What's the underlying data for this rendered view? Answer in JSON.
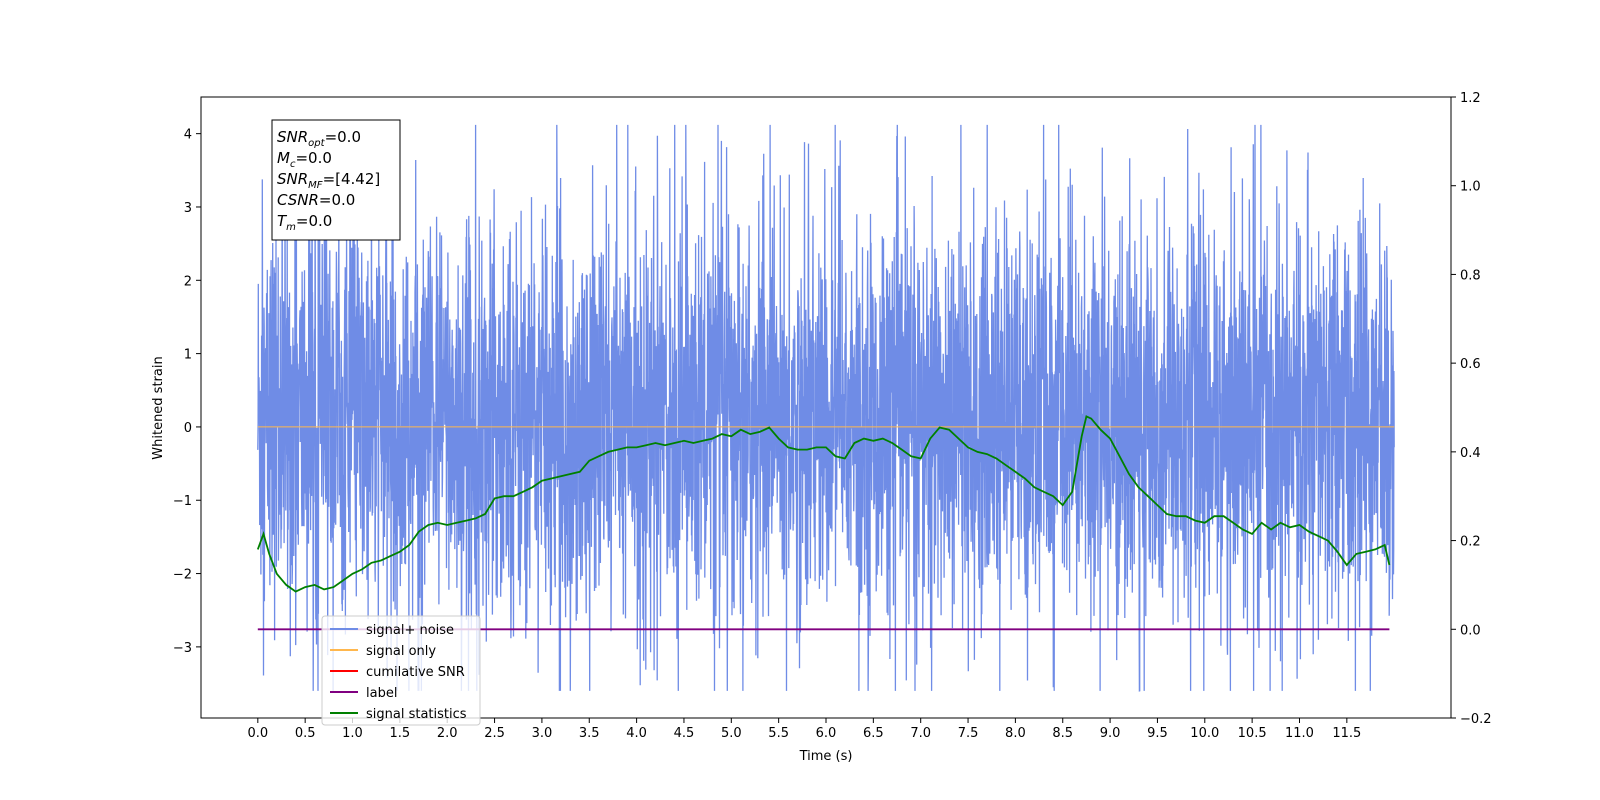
{
  "chart_data": {
    "type": "line",
    "xlabel": "Time (s)",
    "ylabel": "Whitened strain",
    "xlim": [
      -0.6,
      12.6
    ],
    "ylim": [
      -3.97,
      4.5
    ],
    "y2lim": [
      -0.2,
      1.2
    ],
    "x_ticks": [
      0.0,
      0.5,
      1.0,
      1.5,
      2.0,
      2.5,
      3.0,
      3.5,
      4.0,
      4.5,
      5.0,
      5.5,
      6.0,
      6.5,
      7.0,
      7.5,
      8.0,
      8.5,
      9.0,
      9.5,
      10.0,
      10.5,
      11.0,
      11.5
    ],
    "x_tick_labels": [
      "0.0",
      "0.5",
      "1.0",
      "1.5",
      "2.0",
      "2.5",
      "3.0",
      "3.5",
      "4.0",
      "4.5",
      "5.0",
      "5.5",
      "6.0",
      "6.5",
      "7.0",
      "7.5",
      "8.0",
      "8.5",
      "9.0",
      "9.5",
      "10.0",
      "10.5",
      "11.0",
      "11.5"
    ],
    "y_ticks": [
      -3,
      -2,
      -1,
      0,
      1,
      2,
      3,
      4
    ],
    "y_tick_labels": [
      "−3",
      "−2",
      "−1",
      "0",
      "1",
      "2",
      "3",
      "4"
    ],
    "y2_ticks": [
      -0.2,
      0.0,
      0.2,
      0.4,
      0.6,
      0.8,
      1.0,
      1.2
    ],
    "y2_tick_labels": [
      "−0.2",
      "0.0",
      "0.2",
      "0.4",
      "0.6",
      "0.8",
      "1.0",
      "1.2"
    ],
    "grid": false,
    "legend_position": "lower-left",
    "annotation": [
      {
        "base": "SNR",
        "sub": "opt",
        "value": "=0.0"
      },
      {
        "base": "M",
        "sub": "c",
        "value": "=0.0"
      },
      {
        "base": "SNR",
        "sub": "MF",
        "value": "=[4.42]"
      },
      {
        "base": "CSNR",
        "sub": "",
        "value": "=0.0"
      },
      {
        "base": "T",
        "sub": "m",
        "value": "=0.0"
      }
    ],
    "series": [
      {
        "name": "signal+ noise",
        "color": "#6f8ce6",
        "axis": "left",
        "kind": "noise",
        "x_range": [
          0.0,
          12.0
        ],
        "band": [
          -1.3,
          1.5
        ],
        "max": 4.12,
        "min": -3.6
      },
      {
        "name": "signal only",
        "color": "#ffb74d",
        "axis": "left",
        "x": [
          0.0,
          12.0
        ],
        "y": [
          0.0,
          0.0
        ]
      },
      {
        "name": "cumilative SNR",
        "color": "#ff0000",
        "axis": "right",
        "x": [],
        "y": []
      },
      {
        "name": "label",
        "color": "#800080",
        "axis": "right",
        "x": [
          0.0,
          11.95
        ],
        "y": [
          0.0,
          0.0
        ]
      },
      {
        "name": "signal statistics",
        "color": "#008000",
        "axis": "right",
        "x": [
          0.0,
          0.06,
          0.12,
          0.2,
          0.3,
          0.4,
          0.5,
          0.6,
          0.7,
          0.8,
          0.9,
          1.0,
          1.1,
          1.2,
          1.3,
          1.4,
          1.5,
          1.6,
          1.7,
          1.8,
          1.9,
          2.0,
          2.1,
          2.2,
          2.3,
          2.4,
          2.5,
          2.6,
          2.7,
          2.8,
          2.9,
          3.0,
          3.1,
          3.2,
          3.3,
          3.4,
          3.5,
          3.6,
          3.7,
          3.8,
          3.9,
          4.0,
          4.1,
          4.2,
          4.3,
          4.4,
          4.5,
          4.6,
          4.7,
          4.8,
          4.9,
          5.0,
          5.1,
          5.2,
          5.3,
          5.4,
          5.5,
          5.6,
          5.7,
          5.8,
          5.9,
          6.0,
          6.1,
          6.2,
          6.3,
          6.4,
          6.5,
          6.6,
          6.7,
          6.8,
          6.9,
          7.0,
          7.1,
          7.2,
          7.3,
          7.4,
          7.5,
          7.6,
          7.7,
          7.8,
          7.9,
          8.0,
          8.1,
          8.2,
          8.3,
          8.4,
          8.5,
          8.6,
          8.7,
          8.75,
          8.8,
          8.9,
          9.0,
          9.1,
          9.2,
          9.3,
          9.4,
          9.5,
          9.6,
          9.7,
          9.8,
          9.9,
          10.0,
          10.1,
          10.2,
          10.3,
          10.4,
          10.5,
          10.6,
          10.7,
          10.8,
          10.9,
          11.0,
          11.1,
          11.2,
          11.3,
          11.4,
          11.5,
          11.6,
          11.7,
          11.8,
          11.9,
          11.95
        ],
        "y": [
          0.18,
          0.215,
          0.17,
          0.125,
          0.1,
          0.085,
          0.095,
          0.1,
          0.09,
          0.095,
          0.11,
          0.125,
          0.135,
          0.15,
          0.155,
          0.165,
          0.175,
          0.19,
          0.22,
          0.235,
          0.24,
          0.235,
          0.24,
          0.245,
          0.25,
          0.26,
          0.295,
          0.3,
          0.3,
          0.31,
          0.32,
          0.335,
          0.34,
          0.345,
          0.35,
          0.355,
          0.38,
          0.39,
          0.4,
          0.405,
          0.41,
          0.41,
          0.415,
          0.42,
          0.415,
          0.42,
          0.425,
          0.42,
          0.425,
          0.43,
          0.44,
          0.435,
          0.45,
          0.44,
          0.445,
          0.455,
          0.43,
          0.41,
          0.405,
          0.405,
          0.41,
          0.41,
          0.39,
          0.385,
          0.42,
          0.43,
          0.425,
          0.43,
          0.42,
          0.405,
          0.39,
          0.385,
          0.43,
          0.455,
          0.45,
          0.43,
          0.41,
          0.4,
          0.395,
          0.385,
          0.37,
          0.355,
          0.34,
          0.32,
          0.31,
          0.3,
          0.28,
          0.31,
          0.435,
          0.48,
          0.475,
          0.45,
          0.43,
          0.39,
          0.35,
          0.32,
          0.3,
          0.28,
          0.26,
          0.255,
          0.255,
          0.245,
          0.24,
          0.255,
          0.255,
          0.24,
          0.225,
          0.215,
          0.24,
          0.225,
          0.24,
          0.23,
          0.235,
          0.22,
          0.21,
          0.2,
          0.175,
          0.145,
          0.17,
          0.175,
          0.18,
          0.19,
          0.145
        ]
      }
    ]
  }
}
